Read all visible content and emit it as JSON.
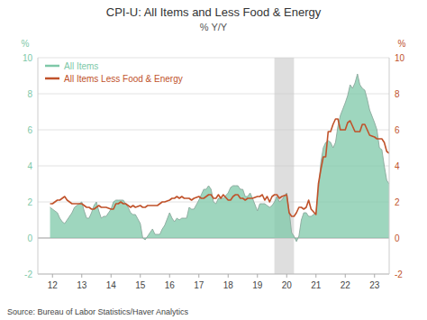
{
  "chart_data": {
    "type": "area",
    "title": "CPI-U: All Items and Less Food & Energy",
    "subtitle": "% Y/Y",
    "source": "Source:  Bureau of Labor Statistics/Haver Analytics",
    "ylabel": "%",
    "y2label": "%",
    "xlim": [
      11.5,
      23.5
    ],
    "xticks": [
      12,
      13,
      14,
      15,
      16,
      17,
      18,
      19,
      20,
      21,
      22,
      23
    ],
    "ylim": [
      -2,
      10
    ],
    "yticks": [
      -2,
      0,
      2,
      4,
      6,
      8,
      10
    ],
    "y2lim": [
      -2,
      10
    ],
    "y2ticks": [
      -2,
      0,
      2,
      4,
      6,
      8,
      10
    ],
    "grid": true,
    "legend": "upper-left",
    "bands": [
      {
        "x0": 19.58,
        "x1": 20.25,
        "color": "#c8c8c8"
      }
    ],
    "x": [
      11.917,
      12.0,
      12.083,
      12.167,
      12.25,
      12.333,
      12.417,
      12.5,
      12.583,
      12.667,
      12.75,
      12.833,
      13.0,
      13.083,
      13.167,
      13.25,
      13.333,
      13.417,
      13.5,
      13.583,
      13.667,
      13.75,
      13.833,
      14.0,
      14.083,
      14.167,
      14.25,
      14.333,
      14.417,
      14.5,
      14.583,
      14.667,
      14.75,
      14.833,
      15.0,
      15.083,
      15.167,
      15.25,
      15.333,
      15.417,
      15.5,
      15.583,
      15.667,
      15.75,
      15.833,
      16.0,
      16.083,
      16.167,
      16.25,
      16.333,
      16.417,
      16.5,
      16.583,
      16.667,
      16.75,
      16.833,
      17.0,
      17.083,
      17.167,
      17.25,
      17.333,
      17.417,
      17.5,
      17.583,
      17.667,
      17.75,
      17.833,
      18.0,
      18.083,
      18.167,
      18.25,
      18.333,
      18.417,
      18.5,
      18.583,
      18.667,
      18.75,
      18.833,
      19.0,
      19.083,
      19.167,
      19.25,
      19.333,
      19.417,
      19.5,
      19.583,
      19.667,
      19.75,
      19.833,
      20.0,
      20.083,
      20.167,
      20.25,
      20.333,
      20.417,
      20.5,
      20.583,
      20.667,
      20.75,
      20.833,
      21.0,
      21.083,
      21.167,
      21.25,
      21.333,
      21.417,
      21.5,
      21.583,
      21.667,
      21.75,
      21.833,
      22.0,
      22.083,
      22.167,
      22.25,
      22.333,
      22.417,
      22.5,
      22.583,
      22.667,
      22.75,
      22.833,
      23.0,
      23.083,
      23.167,
      23.25,
      23.333,
      23.417,
      23.5
    ],
    "series": [
      {
        "name": "All Items",
        "type": "area",
        "color": "#7ec8a8",
        "values": [
          1.7,
          1.6,
          1.5,
          1.4,
          1.1,
          0.9,
          0.8,
          1.0,
          1.2,
          1.4,
          1.7,
          1.8,
          2.0,
          1.5,
          1.1,
          1.1,
          1.4,
          1.8,
          2.0,
          1.5,
          1.1,
          1.2,
          1.2,
          1.6,
          2.0,
          2.1,
          2.1,
          2.1,
          2.1,
          1.9,
          1.7,
          1.4,
          1.3,
          1.3,
          0.8,
          0.0,
          -0.1,
          0.1,
          0.3,
          0.5,
          0.2,
          0.2,
          0.2,
          0.5,
          0.7,
          1.4,
          1.1,
          0.9,
          1.1,
          1.0,
          1.1,
          1.1,
          1.1,
          1.7,
          1.6,
          1.6,
          2.1,
          2.4,
          2.7,
          2.7,
          2.9,
          2.7,
          2.0,
          1.9,
          2.2,
          2.2,
          2.2,
          2.5,
          2.8,
          2.9,
          2.9,
          2.9,
          2.7,
          2.7,
          2.3,
          2.3,
          2.5,
          2.2,
          1.5,
          1.9,
          1.9,
          1.9,
          1.8,
          1.7,
          1.8,
          2.0,
          2.3,
          2.0,
          2.1,
          2.5,
          1.5,
          0.3,
          0.1,
          -0.2,
          0.1,
          1.0,
          1.4,
          1.4,
          1.2,
          1.2,
          1.4,
          2.6,
          4.2,
          5.0,
          5.3,
          5.4,
          5.3,
          5.0,
          5.3,
          6.2,
          6.8,
          7.5,
          7.9,
          8.5,
          8.3,
          8.6,
          9.1,
          8.5,
          8.3,
          8.2,
          7.7,
          7.1,
          6.4,
          6.0,
          5.0,
          4.9,
          4.0,
          3.2,
          3.0
        ]
      },
      {
        "name": "All Items Less Food & Energy",
        "type": "line",
        "color": "#c0522a",
        "axis": "y2",
        "values": [
          1.9,
          1.9,
          2.0,
          2.1,
          2.1,
          2.2,
          2.3,
          2.1,
          2.0,
          1.9,
          1.9,
          1.9,
          1.9,
          1.8,
          1.7,
          1.7,
          1.6,
          1.6,
          1.7,
          1.8,
          1.7,
          1.7,
          1.7,
          1.6,
          1.6,
          1.9,
          1.9,
          2.0,
          1.9,
          1.9,
          1.8,
          1.7,
          1.8,
          1.7,
          1.8,
          1.7,
          1.7,
          1.8,
          1.8,
          1.8,
          1.8,
          1.8,
          1.9,
          2.0,
          2.0,
          2.1,
          2.2,
          2.2,
          2.3,
          2.2,
          2.3,
          2.2,
          2.2,
          2.2,
          2.1,
          2.2,
          2.3,
          2.2,
          2.2,
          2.3,
          2.4,
          2.4,
          2.2,
          2.2,
          2.4,
          2.2,
          2.4,
          2.1,
          2.1,
          2.3,
          2.4,
          2.4,
          2.2,
          2.2,
          2.1,
          2.2,
          2.2,
          2.2,
          2.3,
          2.3,
          2.4,
          2.1,
          2.3,
          2.0,
          2.3,
          2.4,
          2.4,
          2.2,
          2.3,
          2.4,
          1.4,
          1.2,
          1.2,
          1.4,
          1.7,
          1.7,
          1.6,
          1.7,
          2.1,
          1.6,
          1.3,
          3.0,
          3.8,
          4.5,
          4.5,
          5.9,
          5.9,
          6.3,
          6.6,
          6.6,
          6.0,
          6.0,
          6.4,
          6.5,
          6.2,
          5.9,
          5.9,
          5.9,
          6.3,
          6.3,
          6.0,
          5.7,
          5.6,
          5.5,
          5.5,
          5.5,
          5.3,
          4.8,
          4.7
        ]
      }
    ]
  }
}
